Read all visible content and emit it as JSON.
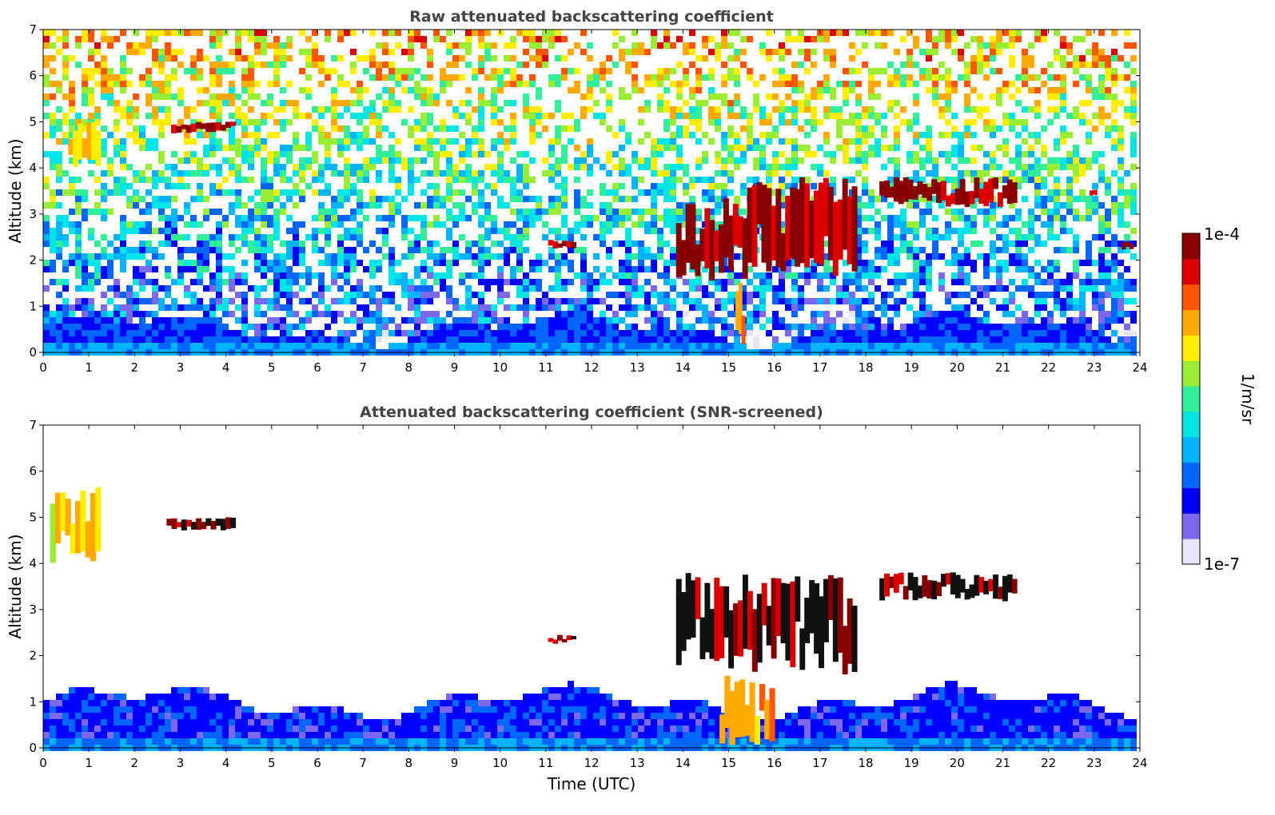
{
  "chart_data": [
    {
      "type": "heatmap",
      "title": "Raw attenuated backscattering coefficient",
      "xlabel": "",
      "ylabel": "Altitude (km)",
      "xlim": [
        0,
        24
      ],
      "ylim": [
        0,
        7
      ],
      "xticks": [
        "0",
        "1",
        "2",
        "3",
        "4",
        "5",
        "6",
        "7",
        "8",
        "9",
        "10",
        "11",
        "12",
        "13",
        "14",
        "15",
        "16",
        "17",
        "18",
        "19",
        "20",
        "21",
        "22",
        "23",
        "24"
      ],
      "yticks": [
        "0",
        "1",
        "2",
        "3",
        "4",
        "5",
        "6",
        "7"
      ],
      "features": [
        {
          "kind": "boundary_layer",
          "x_start": 0,
          "x_end": 23.8,
          "top_km": 0.5,
          "level": 0.22
        },
        {
          "kind": "cloud",
          "x_start": 0.55,
          "x_end": 1.25,
          "y_bottom": 4.0,
          "y_top": 5.0,
          "level": 0.78
        },
        {
          "kind": "cloud",
          "x_start": 2.8,
          "x_end": 4.2,
          "y_bottom": 4.75,
          "y_top": 5.0,
          "level": 1.0
        },
        {
          "kind": "cloud",
          "x_start": 11.05,
          "x_end": 11.65,
          "y_bottom": 2.25,
          "y_top": 2.45,
          "level": 1.0
        },
        {
          "kind": "cloud",
          "x_start": 13.85,
          "x_end": 15.3,
          "y_bottom": 1.6,
          "y_top": 3.3,
          "level": 1.0
        },
        {
          "kind": "cloud",
          "x_start": 15.3,
          "x_end": 17.8,
          "y_bottom": 1.6,
          "y_top": 3.8,
          "level": 1.0
        },
        {
          "kind": "cloud",
          "x_start": 18.3,
          "x_end": 21.3,
          "y_bottom": 3.15,
          "y_top": 3.8,
          "level": 1.0
        },
        {
          "kind": "cloud",
          "x_start": 22.9,
          "x_end": 23.05,
          "y_bottom": 3.4,
          "y_top": 3.55,
          "level": 1.0
        },
        {
          "kind": "cloud",
          "x_start": 23.6,
          "x_end": 23.85,
          "y_bottom": 2.2,
          "y_top": 2.4,
          "level": 1.0
        },
        {
          "kind": "precipitation",
          "x_start": 15.15,
          "x_end": 15.35,
          "y_bottom": 0,
          "y_top": 1.6,
          "level": 0.85
        }
      ]
    },
    {
      "type": "heatmap",
      "title": "Attenuated backscattering coefficient (SNR-screened)",
      "xlabel": "Time (UTC)",
      "ylabel": "Altitude (km)",
      "xlim": [
        0,
        24
      ],
      "ylim": [
        0,
        7
      ],
      "xticks": [
        "0",
        "1",
        "2",
        "3",
        "4",
        "5",
        "6",
        "7",
        "8",
        "9",
        "10",
        "11",
        "12",
        "13",
        "14",
        "15",
        "16",
        "17",
        "18",
        "19",
        "20",
        "21",
        "22",
        "23",
        "24"
      ],
      "yticks": [
        "0",
        "1",
        "2",
        "3",
        "4",
        "5",
        "6",
        "7"
      ],
      "features": [
        {
          "kind": "boundary_layer",
          "x_start": 0,
          "x_end": 23.8,
          "top_km": 1.0,
          "level": 0.2
        },
        {
          "kind": "cloud",
          "x_start": 0.15,
          "x_end": 1.25,
          "y_bottom": 4.0,
          "y_top": 5.8,
          "level": 0.72
        },
        {
          "kind": "cloud",
          "x_start": 2.7,
          "x_end": 4.2,
          "y_bottom": 4.7,
          "y_top": 5.0,
          "level": 1.0
        },
        {
          "kind": "cloud",
          "x_start": 11.05,
          "x_end": 11.65,
          "y_bottom": 2.25,
          "y_top": 2.45,
          "level": 1.0
        },
        {
          "kind": "cloud",
          "x_start": 13.85,
          "x_end": 17.8,
          "y_bottom": 1.6,
          "y_top": 3.8,
          "level": 1.0
        },
        {
          "kind": "cloud",
          "x_start": 18.3,
          "x_end": 21.3,
          "y_bottom": 3.15,
          "y_top": 3.8,
          "level": 1.0
        },
        {
          "kind": "precipitation",
          "x_start": 14.8,
          "x_end": 16.0,
          "y_bottom": 0,
          "y_top": 1.6,
          "level": 0.8
        }
      ]
    }
  ],
  "colorbar": {
    "label": "1/m/sr",
    "max_label": "1e-4",
    "min_label": "1e-7",
    "colors": [
      "#e6e6fa",
      "#7b68ee",
      "#0000ff",
      "#0066ff",
      "#00b4ff",
      "#00e5e5",
      "#33ee99",
      "#99ee33",
      "#ffee00",
      "#ffaa00",
      "#ff5500",
      "#dd0000",
      "#880000"
    ]
  }
}
